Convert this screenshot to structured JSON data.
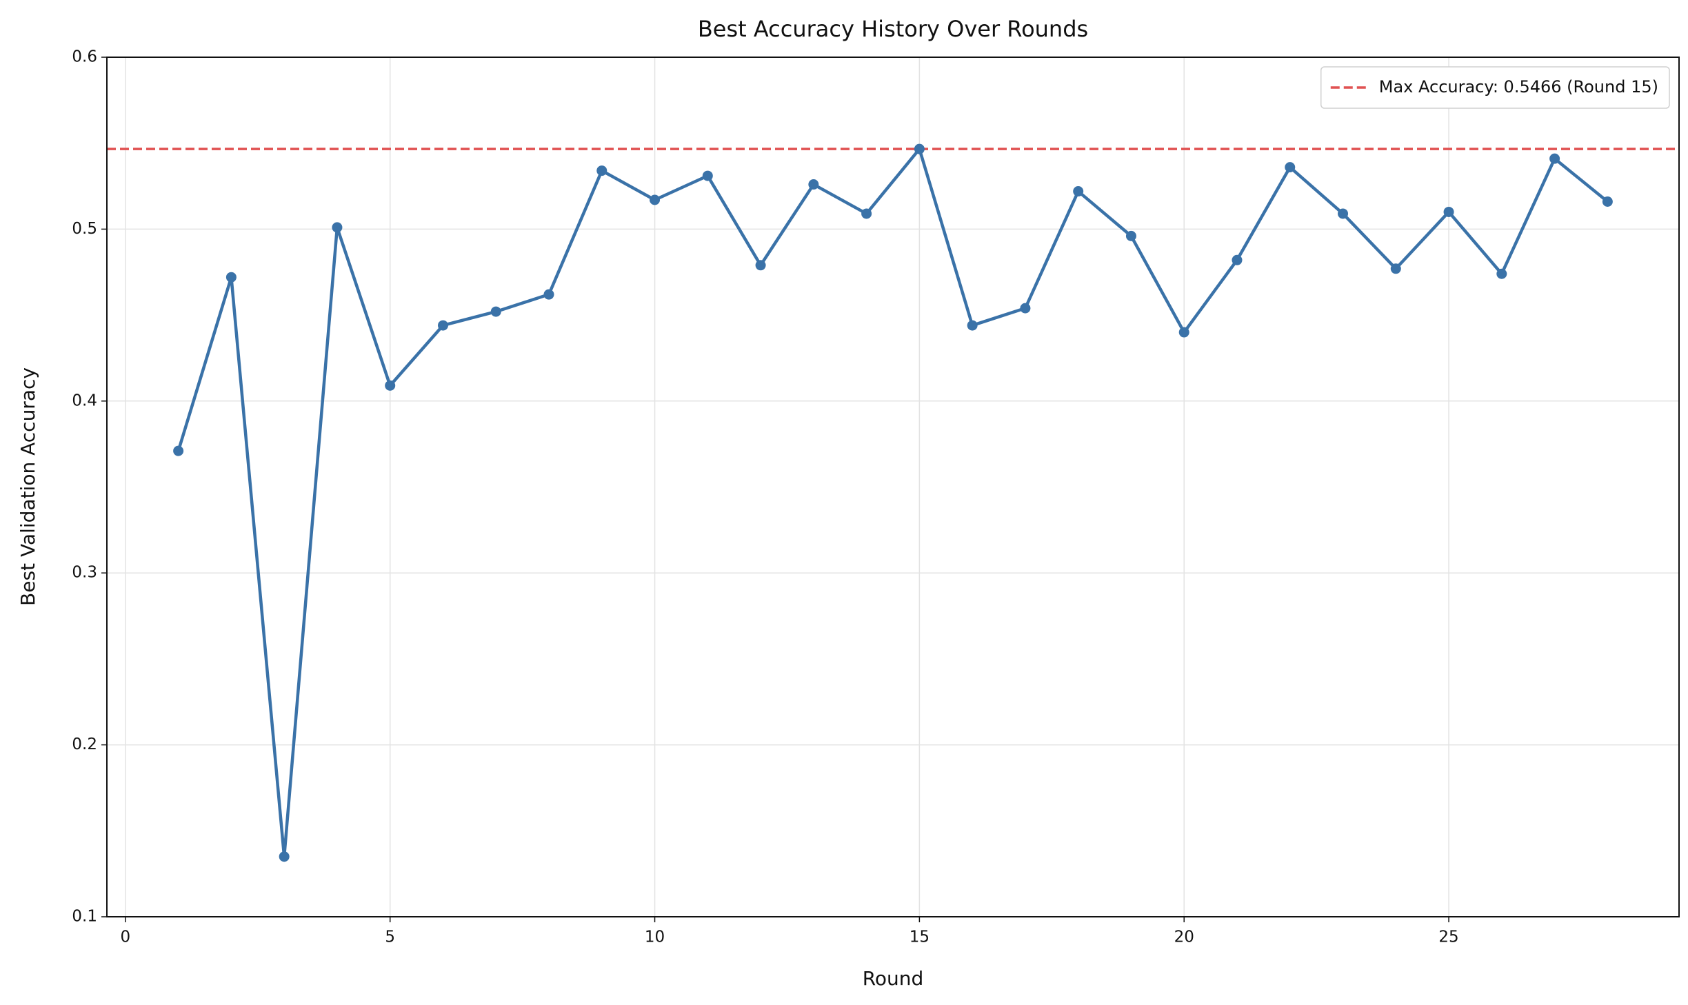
{
  "chart_data": {
    "type": "line",
    "title": "Best Accuracy History Over Rounds",
    "x_label": "Round",
    "y_label": "Best Validation Accuracy",
    "x": [
      1,
      2,
      3,
      4,
      5,
      6,
      7,
      8,
      9,
      10,
      11,
      12,
      13,
      14,
      15,
      16,
      17,
      18,
      19,
      20,
      21,
      22,
      23,
      24,
      25,
      26,
      27,
      28
    ],
    "series": [
      {
        "color": "#3a72a8",
        "values": [
          0.371,
          0.472,
          0.135,
          0.501,
          0.409,
          0.444,
          0.452,
          0.462,
          0.534,
          0.517,
          0.531,
          0.479,
          0.526,
          0.509,
          0.5466,
          0.444,
          0.454,
          0.522,
          0.496,
          0.44,
          0.482,
          0.536,
          0.509,
          0.477,
          0.51,
          0.474,
          0.541,
          0.516
        ]
      }
    ],
    "reference_lines": [
      {
        "label": "Max Accuracy: 0.5466 (Round 15)",
        "value": 0.5466,
        "color": "#e05252",
        "dashed": true
      }
    ],
    "xlim": [
      -0.35,
      29.35
    ],
    "xticks": [
      0,
      5,
      10,
      15,
      20,
      25
    ],
    "ylim": [
      0.1,
      0.6
    ],
    "yticks": [
      0.1,
      0.2,
      0.3,
      0.4,
      0.5,
      0.6
    ],
    "grid": true,
    "legend": "upper right"
  }
}
